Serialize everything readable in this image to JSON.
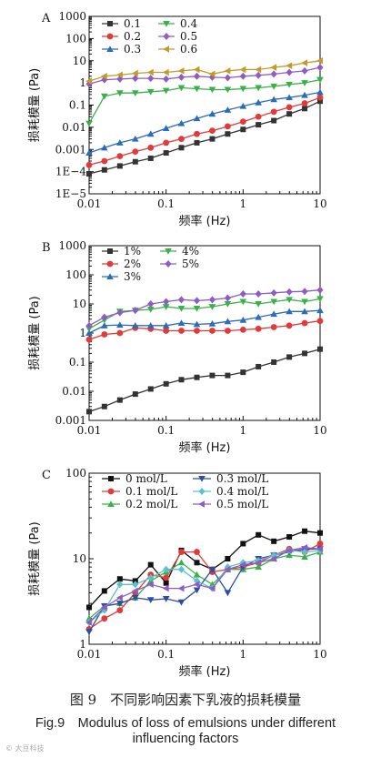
{
  "caption_cn": "图 9　不同影响因素下乳液的损耗模量",
  "caption_en_line1": "Fig.9　Modulus of loss of emulsions under different",
  "caption_en_line2": "influencing factors",
  "watermark": "© 大豆科技",
  "chart_data": [
    {
      "panel": "A",
      "type": "line",
      "xlabel": "频率 (Hz)",
      "ylabel": "损耗模量 (Pa)",
      "xscale": "log",
      "yscale": "log",
      "xlim": [
        0.01,
        10
      ],
      "ylim": [
        1e-05,
        1000
      ],
      "xticks": [
        "0.01",
        "0.1",
        "1",
        "10"
      ],
      "yticks": [
        "1E−5",
        "1E−4",
        "0.001",
        "0.01",
        "0.1",
        "1",
        "10",
        "100",
        "1000"
      ],
      "legend_position": "top-left",
      "x": [
        0.01,
        0.0158,
        0.0251,
        0.0398,
        0.0631,
        0.1,
        0.158,
        0.251,
        0.398,
        0.631,
        1,
        1.58,
        2.51,
        3.98,
        6.31,
        10
      ],
      "series": [
        {
          "name": "0.1",
          "marker": "square",
          "color": "#333333",
          "values": [
            8e-05,
            0.00012,
            0.00018,
            0.00028,
            0.0004,
            0.0007,
            0.0012,
            0.002,
            0.003,
            0.005,
            0.008,
            0.013,
            0.02,
            0.04,
            0.07,
            0.15
          ]
        },
        {
          "name": "0.2",
          "marker": "circle",
          "color": "#e03a3a",
          "values": [
            0.0002,
            0.0003,
            0.0005,
            0.0008,
            0.0012,
            0.002,
            0.003,
            0.005,
            0.007,
            0.011,
            0.018,
            0.03,
            0.05,
            0.08,
            0.12,
            0.22
          ]
        },
        {
          "name": "0.3",
          "marker": "triangle-up",
          "color": "#2b6cb8",
          "values": [
            0.0007,
            0.0012,
            0.002,
            0.003,
            0.005,
            0.009,
            0.015,
            0.025,
            0.04,
            0.06,
            0.09,
            0.13,
            0.18,
            0.22,
            0.28,
            0.38
          ]
        },
        {
          "name": "0.4",
          "marker": "triangle-down",
          "color": "#3bb04a",
          "values": [
            0.015,
            0.25,
            0.35,
            0.35,
            0.4,
            0.45,
            0.6,
            0.55,
            0.5,
            0.5,
            0.55,
            0.6,
            0.7,
            0.85,
            1.0,
            1.4
          ]
        },
        {
          "name": "0.5",
          "marker": "diamond",
          "color": "#8e5cc2",
          "values": [
            0.9,
            1.4,
            1.5,
            1.6,
            1.6,
            1.5,
            1.8,
            2.0,
            1.8,
            1.7,
            2.0,
            2.2,
            2.5,
            3.0,
            3.5,
            5.0
          ]
        },
        {
          "name": "0.6",
          "marker": "triangle-left",
          "color": "#c49a2b",
          "values": [
            1.2,
            2.0,
            2.3,
            2.7,
            3.0,
            3.0,
            3.5,
            4.0,
            2.5,
            3.5,
            4.0,
            4.0,
            5.0,
            6.0,
            8.0,
            10.0
          ]
        }
      ]
    },
    {
      "panel": "B",
      "type": "line",
      "xlabel": "频率 (Hz)",
      "ylabel": "损耗模量 (Pa)",
      "xscale": "log",
      "yscale": "log",
      "xlim": [
        0.01,
        10
      ],
      "ylim": [
        0.001,
        1000
      ],
      "xticks": [
        "0.01",
        "0.1",
        "1",
        "10"
      ],
      "yticks": [
        "0.001",
        "0.01",
        "0.1",
        "1",
        "10",
        "100",
        "1000"
      ],
      "legend_position": "top-left",
      "x": [
        0.01,
        0.0158,
        0.0251,
        0.0398,
        0.0631,
        0.1,
        0.158,
        0.251,
        0.398,
        0.631,
        1,
        1.58,
        2.51,
        3.98,
        6.31,
        10
      ],
      "series": [
        {
          "name": "1%",
          "marker": "square",
          "color": "#333333",
          "values": [
            0.002,
            0.003,
            0.005,
            0.008,
            0.012,
            0.018,
            0.025,
            0.03,
            0.035,
            0.035,
            0.045,
            0.07,
            0.1,
            0.15,
            0.2,
            0.28
          ]
        },
        {
          "name": "2%",
          "marker": "circle",
          "color": "#e03a3a",
          "values": [
            0.6,
            0.9,
            1.0,
            1.5,
            1.4,
            1.2,
            1.2,
            1.2,
            1.2,
            1.2,
            1.3,
            1.4,
            1.6,
            1.8,
            2.2,
            2.6
          ]
        },
        {
          "name": "3%",
          "marker": "triangle-up",
          "color": "#2b6cb8",
          "values": [
            1.0,
            1.8,
            1.9,
            1.8,
            1.8,
            1.8,
            2.2,
            2.0,
            2.1,
            2.5,
            2.8,
            3.5,
            4.5,
            5.5,
            5.5,
            6.0
          ]
        },
        {
          "name": "4%",
          "marker": "triangle-down",
          "color": "#3bb04a",
          "values": [
            1.4,
            2.8,
            5.5,
            6.0,
            6.5,
            8.0,
            7.0,
            7.0,
            8.0,
            10.0,
            12.0,
            10.0,
            12.0,
            14.0,
            12.0,
            15.0
          ]
        },
        {
          "name": "5%",
          "marker": "diamond",
          "color": "#8e5cc2",
          "values": [
            1.8,
            3.5,
            5.0,
            6.0,
            10.0,
            12.0,
            14.0,
            13.0,
            14.0,
            16.0,
            22.0,
            22.0,
            24.0,
            26.0,
            27.0,
            30.0
          ]
        }
      ]
    },
    {
      "panel": "C",
      "type": "line",
      "xlabel": "频率 (Hz)",
      "ylabel": "损耗模量 (Pa)",
      "xscale": "log",
      "yscale": "log",
      "xlim": [
        0.01,
        10
      ],
      "ylim": [
        1,
        100
      ],
      "xticks": [
        "0.01",
        "0.1",
        "1",
        "10"
      ],
      "yticks": [
        "1",
        "10",
        "100"
      ],
      "legend_position": "top",
      "x": [
        0.01,
        0.0158,
        0.0251,
        0.0398,
        0.0631,
        0.1,
        0.158,
        0.251,
        0.398,
        0.631,
        1,
        1.58,
        2.51,
        3.98,
        6.31,
        10
      ],
      "series": [
        {
          "name": "0 mol/L",
          "marker": "square",
          "color": "#111111",
          "values": [
            2.7,
            4.2,
            5.8,
            5.5,
            8.5,
            5.2,
            12.5,
            9.0,
            7.5,
            10.0,
            15.0,
            19.0,
            16.0,
            18.0,
            21.0,
            20.0
          ]
        },
        {
          "name": "0.1 mol/L",
          "marker": "circle",
          "color": "#e03a3a",
          "values": [
            1.5,
            2.0,
            2.5,
            4.0,
            6.5,
            6.0,
            12.0,
            12.0,
            7.0,
            7.5,
            8.0,
            9.0,
            11.0,
            13.0,
            12.0,
            15.0
          ]
        },
        {
          "name": "0.2 mol/L",
          "marker": "triangle-up",
          "color": "#3bb04a",
          "values": [
            2.0,
            2.8,
            3.0,
            3.5,
            5.5,
            7.0,
            9.0,
            6.5,
            5.0,
            7.5,
            7.5,
            8.0,
            10.0,
            11.0,
            10.5,
            12.0
          ]
        },
        {
          "name": "0.3 mol/L",
          "marker": "triangle-down",
          "color": "#2b4f9e",
          "values": [
            1.4,
            2.8,
            3.0,
            3.5,
            3.3,
            3.4,
            3.1,
            4.3,
            7.5,
            4.0,
            8.0,
            10.0,
            11.0,
            12.0,
            13.0,
            13.0
          ]
        },
        {
          "name": "0.4 mol/L",
          "marker": "diamond",
          "color": "#5bc0d0",
          "values": [
            1.8,
            2.5,
            5.0,
            5.0,
            6.0,
            7.5,
            7.5,
            5.5,
            4.5,
            8.0,
            9.0,
            9.5,
            11.0,
            12.5,
            12.0,
            12.5
          ]
        },
        {
          "name": "0.5 mol/L",
          "marker": "triangle-left",
          "color": "#8e5cc2",
          "values": [
            1.8,
            2.7,
            3.5,
            4.2,
            5.0,
            4.5,
            4.5,
            5.0,
            4.5,
            7.5,
            8.5,
            9.0,
            10.0,
            12.5,
            13.5,
            13.0
          ]
        }
      ]
    }
  ]
}
